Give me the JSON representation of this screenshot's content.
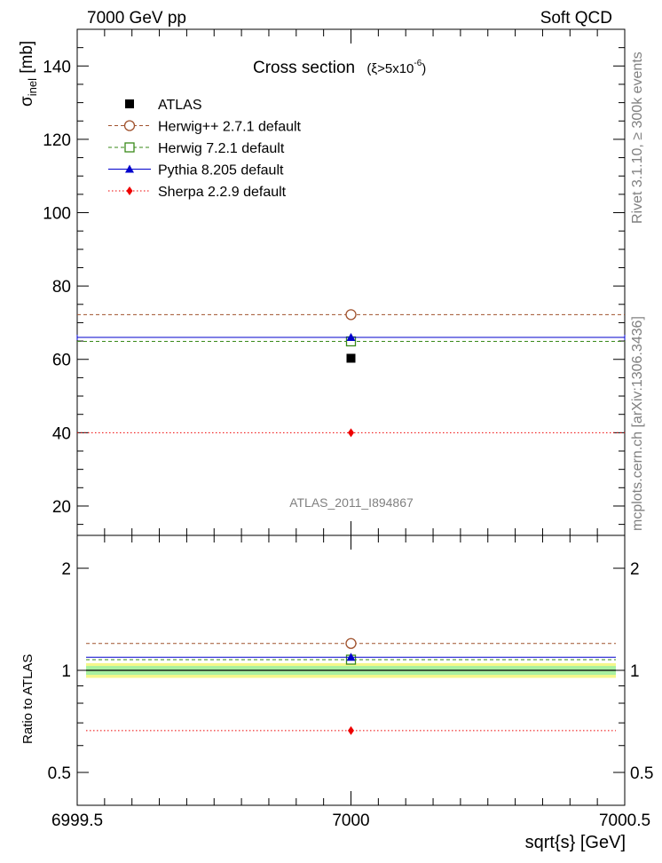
{
  "header": {
    "left": "7000 GeV pp",
    "right": "Soft QCD"
  },
  "side_labels": {
    "rivet": "Rivet 3.1.10, ≥ 300k events",
    "mcplots": "mcplots.cern.ch [arXiv:1306.3436]"
  },
  "chart_data": [
    {
      "type": "scatter",
      "panel": "main",
      "title": "Cross section",
      "title_suffix": "(ξ>5x10",
      "title_sup": "-6",
      "title_close": ")",
      "watermark": "ATLAS_2011_I894867",
      "ylabel_main": "σ",
      "ylabel_sub": "inel",
      "ylabel_unit": " [mb]",
      "xlim": [
        6999.5,
        7000.5
      ],
      "ylim": [
        12,
        150
      ],
      "yticks": [
        20,
        40,
        60,
        80,
        100,
        120,
        140
      ],
      "ytick_labels": [
        "20",
        "40",
        "60",
        "80",
        "100",
        "120",
        "140"
      ],
      "grid": false,
      "legend_position": "top-left",
      "series": [
        {
          "name": "ATLAS",
          "x": [
            7000
          ],
          "y": [
            60.3
          ],
          "color": "#000000",
          "marker": "filled-square",
          "line": "none"
        },
        {
          "name": "Herwig++ 2.7.1 default",
          "x": [
            7000
          ],
          "y": [
            72.2
          ],
          "color": "#a0522d",
          "marker": "open-circle",
          "line": "dashed",
          "xerr": [
            6999.5,
            7000.5
          ]
        },
        {
          "name": "Herwig 7.2.1 default",
          "x": [
            7000
          ],
          "y": [
            64.9
          ],
          "color": "#3a8a1a",
          "marker": "open-square",
          "line": "dashed",
          "xerr": [
            6999.5,
            7000.5
          ]
        },
        {
          "name": "Pythia 8.205 default",
          "x": [
            7000
          ],
          "y": [
            66.0
          ],
          "color": "#0000cc",
          "marker": "filled-triangle",
          "line": "solid",
          "xerr": [
            6999.5,
            7000.5
          ]
        },
        {
          "name": "Sherpa 2.2.9 default",
          "x": [
            7000
          ],
          "y": [
            40.0
          ],
          "color": "#ee0000",
          "marker": "filled-diamond",
          "line": "dotted",
          "xerr": [
            6999.5,
            7000.5
          ]
        }
      ]
    },
    {
      "type": "scatter",
      "panel": "ratio",
      "ylabel": "Ratio to ATLAS",
      "xlabel": "sqrt{s} [GeV]",
      "xlim": [
        6999.5,
        7000.5
      ],
      "ylim": [
        0.4,
        2.5
      ],
      "yscale": "log",
      "yticks": [
        0.5,
        1,
        2
      ],
      "ytick_labels": [
        "0.5",
        "1",
        "2"
      ],
      "xticks": [
        6999.5,
        7000,
        7000.5
      ],
      "xtick_labels": [
        "6999.5",
        "7000",
        "7000.5"
      ],
      "band": {
        "center": 1.0,
        "inner": [
          0.97,
          1.03
        ],
        "outer": [
          0.95,
          1.05
        ]
      },
      "series": [
        {
          "name": "Herwig++ 2.7.1 default",
          "x": [
            7000
          ],
          "y": [
            1.2
          ],
          "color": "#a0522d",
          "marker": "open-circle",
          "line": "dashed"
        },
        {
          "name": "Herwig 7.2.1 default",
          "x": [
            7000
          ],
          "y": [
            1.075
          ],
          "color": "#3a8a1a",
          "marker": "open-square",
          "line": "dashed"
        },
        {
          "name": "Pythia 8.205 default",
          "x": [
            7000
          ],
          "y": [
            1.093
          ],
          "color": "#0000cc",
          "marker": "filled-triangle",
          "line": "solid"
        },
        {
          "name": "Sherpa 2.2.9 default",
          "x": [
            7000
          ],
          "y": [
            0.664
          ],
          "color": "#ee0000",
          "marker": "filled-diamond",
          "line": "dotted"
        }
      ]
    }
  ]
}
